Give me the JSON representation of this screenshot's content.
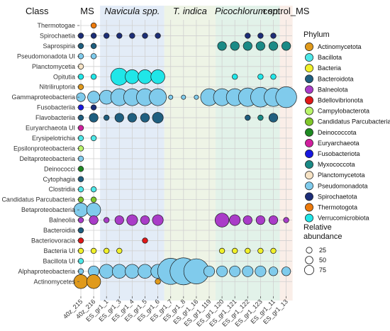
{
  "chart_data": {
    "type": "scatter",
    "y_axis_title": "Class",
    "columns": [
      "40z_215",
      "40z_216",
      "ES_gr1_1",
      "ES_gr1_3",
      "ES_gr1_4",
      "ES_gr1_5",
      "ES_gr1_6",
      "ES_gr1_7",
      "ES_gr1_8",
      "ES_gr1_16",
      "ES_gr1_119",
      "ES_gr1_120",
      "ES_gr1_121",
      "ES_gr1_122",
      "ES_gr1_123",
      "ES_gr1_11",
      "ES_gr1_13"
    ],
    "rows": [
      "Thermotogae",
      "Spirochaetia",
      "Saprospiria",
      "Pseudomonadota UI",
      "Planctomycetia",
      "Opitutia",
      "Nitriliruptoria",
      "Gammaproteobacteria",
      "Fusobacteriia",
      "Flavobacteriia",
      "Euryarchaeota UI",
      "Erysipelotrichia",
      "Epsilonproteobacteria",
      "Deltaproteobacteria",
      "Deinococci",
      "Cytophagia",
      "Clostridia",
      "Candidatus Parcubacteria",
      "Betaproteobacteria",
      "Balneolia",
      "Bacteroidia",
      "Bacteriovoracia",
      "Bacteria UI",
      "Bacillota UI",
      "Alphaproteobacteria",
      "Actinomycetes"
    ],
    "groups": [
      {
        "label": "MS",
        "style": "normal",
        "start": 0,
        "end": 1,
        "color": "#ffffff"
      },
      {
        "label": "Navicula spp.",
        "style": "italic",
        "start": 2,
        "end": 6,
        "color": "#e3ecf7"
      },
      {
        "label": "T. indica",
        "style": "italic",
        "start": 7,
        "end": 10,
        "color": "#eef4e6"
      },
      {
        "label": "Picochlorum sp.",
        "style": "italic",
        "start": 11,
        "end": 15,
        "color": "#e2f2e9"
      },
      {
        "label": "control_MS",
        "style": "normal",
        "start": 16,
        "end": 16,
        "color": "#faeee8"
      }
    ],
    "legend_phylum_title": "Phylum",
    "phyla": [
      {
        "name": "Actinomycetota",
        "color": "#e09a1c"
      },
      {
        "name": "Bacillota",
        "color": "#4ee8e8"
      },
      {
        "name": "Bacteria",
        "color": "#f0f02a"
      },
      {
        "name": "Bacteroidota",
        "color": "#1f5f80"
      },
      {
        "name": "Balneolota",
        "color": "#a93cc8"
      },
      {
        "name": "Bdellovibrionota",
        "color": "#e01818"
      },
      {
        "name": "Campylobacterota",
        "color": "#baf56a"
      },
      {
        "name": "Candidatus Parcubacteria",
        "color": "#80c72a"
      },
      {
        "name": "Deinococcota",
        "color": "#1e8a22"
      },
      {
        "name": "Euryarchaeota",
        "color": "#d0209e"
      },
      {
        "name": "Fusobacteriota",
        "color": "#1818e0"
      },
      {
        "name": "Myxococcota",
        "color": "#1a8a86"
      },
      {
        "name": "Planctomycetota",
        "color": "#f6e2c4"
      },
      {
        "name": "Pseudomonadota",
        "color": "#80cbec"
      },
      {
        "name": "Spirochaetota",
        "color": "#1c2e78"
      },
      {
        "name": "Thermotogota",
        "color": "#ec7a0c"
      },
      {
        "name": "Verrucomicrobiota",
        "color": "#20e6e8"
      }
    ],
    "legend_size_title_lines": [
      "Relative",
      "abundance"
    ],
    "size_legend": [
      25,
      50,
      75
    ],
    "points": [
      {
        "row": "Thermotogae",
        "col": "40z_216",
        "phylum": "Thermotogota",
        "value": 3
      },
      {
        "row": "Spirochaetia",
        "col": "40z_215",
        "phylum": "Spirochaetota",
        "value": 3
      },
      {
        "row": "Spirochaetia",
        "col": "40z_216",
        "phylum": "Spirochaetota",
        "value": 3
      },
      {
        "row": "Spirochaetia",
        "col": "ES_gr1_1",
        "phylum": "Spirochaetota",
        "value": 3
      },
      {
        "row": "Spirochaetia",
        "col": "ES_gr1_3",
        "phylum": "Spirochaetota",
        "value": 3
      },
      {
        "row": "Spirochaetia",
        "col": "ES_gr1_4",
        "phylum": "Spirochaetota",
        "value": 3
      },
      {
        "row": "Spirochaetia",
        "col": "ES_gr1_5",
        "phylum": "Spirochaetota",
        "value": 3
      },
      {
        "row": "Spirochaetia",
        "col": "ES_gr1_6",
        "phylum": "Spirochaetota",
        "value": 3
      },
      {
        "row": "Spirochaetia",
        "col": "ES_gr1_122",
        "phylum": "Spirochaetota",
        "value": 3
      },
      {
        "row": "Spirochaetia",
        "col": "ES_gr1_123",
        "phylum": "Spirochaetota",
        "value": 3
      },
      {
        "row": "Spirochaetia",
        "col": "ES_gr1_11",
        "phylum": "Spirochaetota",
        "value": 3
      },
      {
        "row": "Saprospiria",
        "col": "40z_215",
        "phylum": "Bacteroidota",
        "value": 3
      },
      {
        "row": "Saprospiria",
        "col": "40z_216",
        "phylum": "Bacteroidota",
        "value": 3
      },
      {
        "row": "Saprospiria",
        "col": "ES_gr1_120",
        "phylum": "Myxococcota",
        "value": 8
      },
      {
        "row": "Saprospiria",
        "col": "ES_gr1_121",
        "phylum": "Myxococcota",
        "value": 8
      },
      {
        "row": "Saprospiria",
        "col": "ES_gr1_122",
        "phylum": "Myxococcota",
        "value": 8
      },
      {
        "row": "Saprospiria",
        "col": "ES_gr1_123",
        "phylum": "Myxococcota",
        "value": 8
      },
      {
        "row": "Saprospiria",
        "col": "ES_gr1_11",
        "phylum": "Myxococcota",
        "value": 8
      },
      {
        "row": "Saprospiria",
        "col": "ES_gr1_13",
        "phylum": "Myxococcota",
        "value": 8
      },
      {
        "row": "Pseudomonadota UI",
        "col": "40z_215",
        "phylum": "Pseudomonadota",
        "value": 3
      },
      {
        "row": "Pseudomonadota UI",
        "col": "40z_216",
        "phylum": "Pseudomonadota",
        "value": 3
      },
      {
        "row": "Planctomycetia",
        "col": "40z_215",
        "phylum": "Planctomycetota",
        "value": 3
      },
      {
        "row": "Opitutia",
        "col": "40z_215",
        "phylum": "Verrucomicrobiota",
        "value": 3
      },
      {
        "row": "Opitutia",
        "col": "40z_216",
        "phylum": "Verrucomicrobiota",
        "value": 3
      },
      {
        "row": "Opitutia",
        "col": "ES_gr1_3",
        "phylum": "Verrucomicrobiota",
        "value": 30
      },
      {
        "row": "Opitutia",
        "col": "ES_gr1_4",
        "phylum": "Verrucomicrobiota",
        "value": 20
      },
      {
        "row": "Opitutia",
        "col": "ES_gr1_5",
        "phylum": "Verrucomicrobiota",
        "value": 20
      },
      {
        "row": "Opitutia",
        "col": "ES_gr1_6",
        "phylum": "Verrucomicrobiota",
        "value": 20
      },
      {
        "row": "Opitutia",
        "col": "ES_gr1_121",
        "phylum": "Verrucomicrobiota",
        "value": 3
      },
      {
        "row": "Opitutia",
        "col": "ES_gr1_123",
        "phylum": "Verrucomicrobiota",
        "value": 3
      },
      {
        "row": "Opitutia",
        "col": "ES_gr1_11",
        "phylum": "Verrucomicrobiota",
        "value": 3
      },
      {
        "row": "Nitriliruptoria",
        "col": "40z_215",
        "phylum": "Actinomycetota",
        "value": 3
      },
      {
        "row": "Gammaproteobacteria",
        "col": "40z_215",
        "phylum": "Pseudomonadota",
        "value": 8
      },
      {
        "row": "Gammaproteobacteria",
        "col": "40z_216",
        "phylum": "Pseudomonadota",
        "value": 15
      },
      {
        "row": "Gammaproteobacteria",
        "col": "ES_gr1_1",
        "phylum": "Pseudomonadota",
        "value": 20
      },
      {
        "row": "Gammaproteobacteria",
        "col": "ES_gr1_3",
        "phylum": "Pseudomonadota",
        "value": 30
      },
      {
        "row": "Gammaproteobacteria",
        "col": "ES_gr1_4",
        "phylum": "Pseudomonadota",
        "value": 30
      },
      {
        "row": "Gammaproteobacteria",
        "col": "ES_gr1_5",
        "phylum": "Pseudomonadota",
        "value": 30
      },
      {
        "row": "Gammaproteobacteria",
        "col": "ES_gr1_6",
        "phylum": "Pseudomonadota",
        "value": 30
      },
      {
        "row": "Gammaproteobacteria",
        "col": "ES_gr1_7",
        "phylum": "Pseudomonadota",
        "value": 2
      },
      {
        "row": "Gammaproteobacteria",
        "col": "ES_gr1_8",
        "phylum": "Pseudomonadota",
        "value": 2
      },
      {
        "row": "Gammaproteobacteria",
        "col": "ES_gr1_16",
        "phylum": "Pseudomonadota",
        "value": 2
      },
      {
        "row": "Gammaproteobacteria",
        "col": "ES_gr1_119",
        "phylum": "Pseudomonadota",
        "value": 30
      },
      {
        "row": "Gammaproteobacteria",
        "col": "ES_gr1_120",
        "phylum": "Pseudomonadota",
        "value": 30
      },
      {
        "row": "Gammaproteobacteria",
        "col": "ES_gr1_121",
        "phylum": "Pseudomonadota",
        "value": 30
      },
      {
        "row": "Gammaproteobacteria",
        "col": "ES_gr1_122",
        "phylum": "Pseudomonadota",
        "value": 35
      },
      {
        "row": "Gammaproteobacteria",
        "col": "ES_gr1_123",
        "phylum": "Pseudomonadota",
        "value": 40
      },
      {
        "row": "Gammaproteobacteria",
        "col": "ES_gr1_11",
        "phylum": "Pseudomonadota",
        "value": 35
      },
      {
        "row": "Gammaproteobacteria",
        "col": "ES_gr1_13",
        "phylum": "Pseudomonadota",
        "value": 45
      },
      {
        "row": "Fusobacteriia",
        "col": "40z_215",
        "phylum": "Fusobacteriota",
        "value": 3
      },
      {
        "row": "Fusobacteriia",
        "col": "40z_216",
        "phylum": "Spirochaetota",
        "value": 3
      },
      {
        "row": "Flavobacteriia",
        "col": "40z_215",
        "phylum": "Bacteroidota",
        "value": 3
      },
      {
        "row": "Flavobacteriia",
        "col": "40z_216",
        "phylum": "Bacteroidota",
        "value": 8
      },
      {
        "row": "Flavobacteriia",
        "col": "ES_gr1_1",
        "phylum": "Bacteroidota",
        "value": 3
      },
      {
        "row": "Flavobacteriia",
        "col": "ES_gr1_3",
        "phylum": "Bacteroidota",
        "value": 8
      },
      {
        "row": "Flavobacteriia",
        "col": "ES_gr1_4",
        "phylum": "Bacteroidota",
        "value": 8
      },
      {
        "row": "Flavobacteriia",
        "col": "ES_gr1_5",
        "phylum": "Bacteroidota",
        "value": 8
      },
      {
        "row": "Flavobacteriia",
        "col": "ES_gr1_6",
        "phylum": "Bacteroidota",
        "value": 12
      },
      {
        "row": "Flavobacteriia",
        "col": "ES_gr1_122",
        "phylum": "Bacteroidota",
        "value": 3
      },
      {
        "row": "Flavobacteriia",
        "col": "ES_gr1_123",
        "phylum": "Myxococcota",
        "value": 3
      },
      {
        "row": "Flavobacteriia",
        "col": "ES_gr1_11",
        "phylum": "Bacteroidota",
        "value": 8
      },
      {
        "row": "Euryarchaeota UI",
        "col": "40z_215",
        "phylum": "Euryarchaeota",
        "value": 3
      },
      {
        "row": "Erysipelotrichia",
        "col": "40z_215",
        "phylum": "Bacillota",
        "value": 3
      },
      {
        "row": "Erysipelotrichia",
        "col": "40z_216",
        "phylum": "Bacillota",
        "value": 3
      },
      {
        "row": "Epsilonproteobacteria",
        "col": "40z_215",
        "phylum": "Campylobacterota",
        "value": 3
      },
      {
        "row": "Deltaproteobacteria",
        "col": "40z_215",
        "phylum": "Pseudomonadota",
        "value": 3
      },
      {
        "row": "Deinococci",
        "col": "40z_215",
        "phylum": "Deinococcota",
        "value": 3
      },
      {
        "row": "Cytophagia",
        "col": "40z_215",
        "phylum": "Bacteroidota",
        "value": 3
      },
      {
        "row": "Clostridia",
        "col": "40z_215",
        "phylum": "Bacillota",
        "value": 3
      },
      {
        "row": "Clostridia",
        "col": "40z_216",
        "phylum": "Bacillota",
        "value": 3
      },
      {
        "row": "Candidatus Parcubacteria",
        "col": "40z_215",
        "phylum": "Candidatus Parcubacteria",
        "value": 3
      },
      {
        "row": "Candidatus Parcubacteria",
        "col": "40z_216",
        "phylum": "Candidatus Parcubacteria",
        "value": 3
      },
      {
        "row": "Betaproteobacteria",
        "col": "40z_215",
        "phylum": "Pseudomonadota",
        "value": 20
      },
      {
        "row": "Betaproteobacteria",
        "col": "40z_216",
        "phylum": "Pseudomonadota",
        "value": 20
      },
      {
        "row": "Balneolia",
        "col": "40z_215",
        "phylum": "Balneolota",
        "value": 3
      },
      {
        "row": "Balneolia",
        "col": "40z_216",
        "phylum": "Balneolota",
        "value": 8
      },
      {
        "row": "Balneolia",
        "col": "ES_gr1_1",
        "phylum": "Balneolota",
        "value": 3
      },
      {
        "row": "Balneolia",
        "col": "ES_gr1_3",
        "phylum": "Balneolota",
        "value": 8
      },
      {
        "row": "Balneolia",
        "col": "ES_gr1_4",
        "phylum": "Balneolota",
        "value": 12
      },
      {
        "row": "Balneolia",
        "col": "ES_gr1_5",
        "phylum": "Balneolota",
        "value": 8
      },
      {
        "row": "Balneolia",
        "col": "ES_gr1_6",
        "phylum": "Balneolota",
        "value": 12
      },
      {
        "row": "Balneolia",
        "col": "ES_gr1_120",
        "phylum": "Balneolota",
        "value": 20
      },
      {
        "row": "Balneolia",
        "col": "ES_gr1_121",
        "phylum": "Balneolota",
        "value": 12
      },
      {
        "row": "Balneolia",
        "col": "ES_gr1_122",
        "phylum": "Balneolota",
        "value": 8
      },
      {
        "row": "Balneolia",
        "col": "ES_gr1_123",
        "phylum": "Balneolota",
        "value": 8
      },
      {
        "row": "Balneolia",
        "col": "ES_gr1_11",
        "phylum": "Balneolota",
        "value": 8
      },
      {
        "row": "Balneolia",
        "col": "ES_gr1_13",
        "phylum": "Balneolota",
        "value": 3
      },
      {
        "row": "Bacteroidia",
        "col": "40z_215",
        "phylum": "Bacteroidota",
        "value": 3
      },
      {
        "row": "Bacteriovoracia",
        "col": "40z_215",
        "phylum": "Bdellovibrionota",
        "value": 3
      },
      {
        "row": "Bacteriovoracia",
        "col": "ES_gr1_5",
        "phylum": "Bdellovibrionota",
        "value": 3
      },
      {
        "row": "Bacteria UI",
        "col": "40z_215",
        "phylum": "Bacteria",
        "value": 3
      },
      {
        "row": "Bacteria UI",
        "col": "40z_216",
        "phylum": "Bacteria",
        "value": 3
      },
      {
        "row": "Bacteria UI",
        "col": "ES_gr1_1",
        "phylum": "Bacteria",
        "value": 3
      },
      {
        "row": "Bacteria UI",
        "col": "ES_gr1_3",
        "phylum": "Bacteria",
        "value": 3
      },
      {
        "row": "Bacteria UI",
        "col": "ES_gr1_120",
        "phylum": "Bacteria",
        "value": 3
      },
      {
        "row": "Bacteria UI",
        "col": "ES_gr1_121",
        "phylum": "Bacteria",
        "value": 3
      },
      {
        "row": "Bacteria UI",
        "col": "ES_gr1_122",
        "phylum": "Bacteria",
        "value": 3
      },
      {
        "row": "Bacteria UI",
        "col": "ES_gr1_123",
        "phylum": "Bacteria",
        "value": 3
      },
      {
        "row": "Bacteria UI",
        "col": "ES_gr1_11",
        "phylum": "Bacteria",
        "value": 3
      },
      {
        "row": "Bacillota UI",
        "col": "40z_215",
        "phylum": "Bacillota",
        "value": 3
      },
      {
        "row": "Alphaproteobacteria",
        "col": "40z_215",
        "phylum": "Pseudomonadota",
        "value": 3
      },
      {
        "row": "Alphaproteobacteria",
        "col": "40z_216",
        "phylum": "Pseudomonadota",
        "value": 12
      },
      {
        "row": "Alphaproteobacteria",
        "col": "ES_gr1_1",
        "phylum": "Pseudomonadota",
        "value": 20
      },
      {
        "row": "Alphaproteobacteria",
        "col": "ES_gr1_3",
        "phylum": "Pseudomonadota",
        "value": 20
      },
      {
        "row": "Alphaproteobacteria",
        "col": "ES_gr1_4",
        "phylum": "Pseudomonadota",
        "value": 20
      },
      {
        "row": "Alphaproteobacteria",
        "col": "ES_gr1_5",
        "phylum": "Pseudomonadota",
        "value": 20
      },
      {
        "row": "Alphaproteobacteria",
        "col": "ES_gr1_6",
        "phylum": "Pseudomonadota",
        "value": 20
      },
      {
        "row": "Alphaproteobacteria",
        "col": "ES_gr1_7",
        "phylum": "Pseudomonadota",
        "value": 70
      },
      {
        "row": "Alphaproteobacteria",
        "col": "ES_gr1_8",
        "phylum": "Pseudomonadota",
        "value": 75
      },
      {
        "row": "Alphaproteobacteria",
        "col": "ES_gr1_16",
        "phylum": "Pseudomonadota",
        "value": 65
      },
      {
        "row": "Alphaproteobacteria",
        "col": "ES_gr1_119",
        "phylum": "Pseudomonadota",
        "value": 12
      },
      {
        "row": "Alphaproteobacteria",
        "col": "ES_gr1_120",
        "phylum": "Pseudomonadota",
        "value": 12
      },
      {
        "row": "Alphaproteobacteria",
        "col": "ES_gr1_121",
        "phylum": "Pseudomonadota",
        "value": 12
      },
      {
        "row": "Alphaproteobacteria",
        "col": "ES_gr1_122",
        "phylum": "Pseudomonadota",
        "value": 12
      },
      {
        "row": "Alphaproteobacteria",
        "col": "ES_gr1_123",
        "phylum": "Pseudomonadota",
        "value": 12
      },
      {
        "row": "Alphaproteobacteria",
        "col": "ES_gr1_11",
        "phylum": "Pseudomonadota",
        "value": 8
      },
      {
        "row": "Alphaproteobacteria",
        "col": "ES_gr1_13",
        "phylum": "Pseudomonadota",
        "value": 8
      },
      {
        "row": "Actinomycetes",
        "col": "40z_215",
        "phylum": "Actinomycetota",
        "value": 20
      },
      {
        "row": "Actinomycetes",
        "col": "40z_216",
        "phylum": "Actinomycetota",
        "value": 20
      },
      {
        "row": "Actinomycetes",
        "col": "ES_gr1_6",
        "phylum": "Actinomycetota",
        "value": 3
      }
    ]
  }
}
